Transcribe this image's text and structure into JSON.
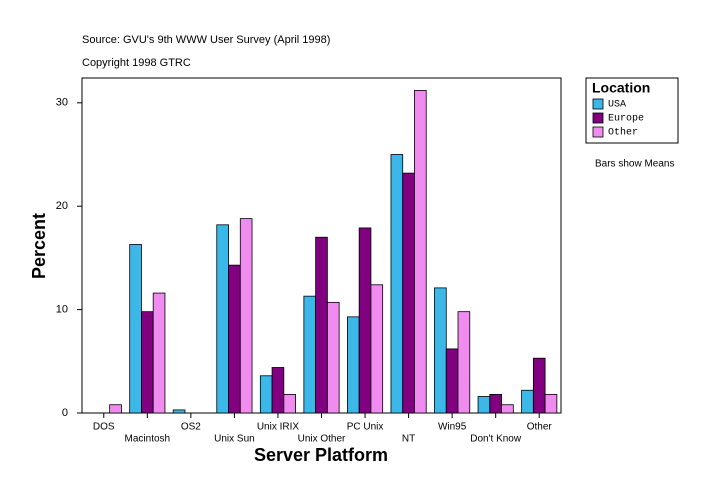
{
  "chart_data": {
    "type": "bar",
    "title": "Source: GVU's 9th WWW User Survey (April 1998)",
    "subtitle": "Copyright 1998 GTRC",
    "annotation": "Bars show Means",
    "x_label": "Server Platform",
    "y_label": "Percent",
    "legend_title": "Location",
    "categories": [
      "DOS",
      "Macintosh",
      "OS2",
      "Unix Sun",
      "Unix IRIX",
      "Unix Other",
      "PC Unix",
      "NT",
      "Win95",
      "Don't Know",
      "Other"
    ],
    "series": [
      {
        "name": "USA",
        "color": "#3cb8e8",
        "values": [
          0,
          16.3,
          0.3,
          18.2,
          3.6,
          11.3,
          9.3,
          25.0,
          12.1,
          1.6,
          2.2
        ]
      },
      {
        "name": "Europe",
        "color": "#800080",
        "values": [
          0,
          9.8,
          0,
          14.3,
          4.4,
          17.0,
          17.9,
          23.2,
          6.2,
          1.8,
          5.3
        ]
      },
      {
        "name": "Other",
        "color": "#f08cf0",
        "values": [
          0.8,
          11.6,
          0,
          18.8,
          1.8,
          10.7,
          12.4,
          31.2,
          9.8,
          0.8,
          1.8
        ]
      }
    ],
    "ylim": [
      0,
      32.4
    ],
    "yticks": [
      0,
      10,
      20,
      30
    ]
  }
}
